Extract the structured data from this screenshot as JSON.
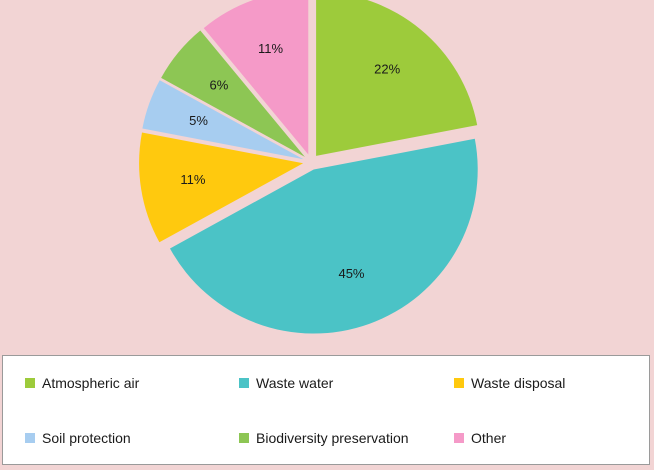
{
  "chart_data": {
    "type": "pie",
    "title": "",
    "categories": [
      "Atmospheric air",
      "Waste water",
      "Waste disposal",
      "Soil protection",
      "Biodiversity preservation",
      "Other"
    ],
    "values": [
      22,
      45,
      11,
      5,
      6,
      11
    ],
    "labels": [
      "22%",
      "45%",
      "11%",
      "5%",
      "6%",
      "11%"
    ],
    "colors": [
      "#9dcb3b",
      "#4bc3c6",
      "#ffc90e",
      "#a7cdf0",
      "#8dc654",
      "#f59ac8"
    ],
    "start": "12 o'clock, clockwise",
    "exploded": true,
    "legend_position": "bottom"
  },
  "legend": [
    {
      "label": "Atmospheric air",
      "color": "#9dcb3b"
    },
    {
      "label": "Waste water",
      "color": "#4bc3c6"
    },
    {
      "label": "Waste disposal",
      "color": "#ffc90e"
    },
    {
      "label": "Soil protection",
      "color": "#a7cdf0"
    },
    {
      "label": "Biodiversity preservation",
      "color": "#8dc654"
    },
    {
      "label": "Other",
      "color": "#f59ac8"
    }
  ]
}
